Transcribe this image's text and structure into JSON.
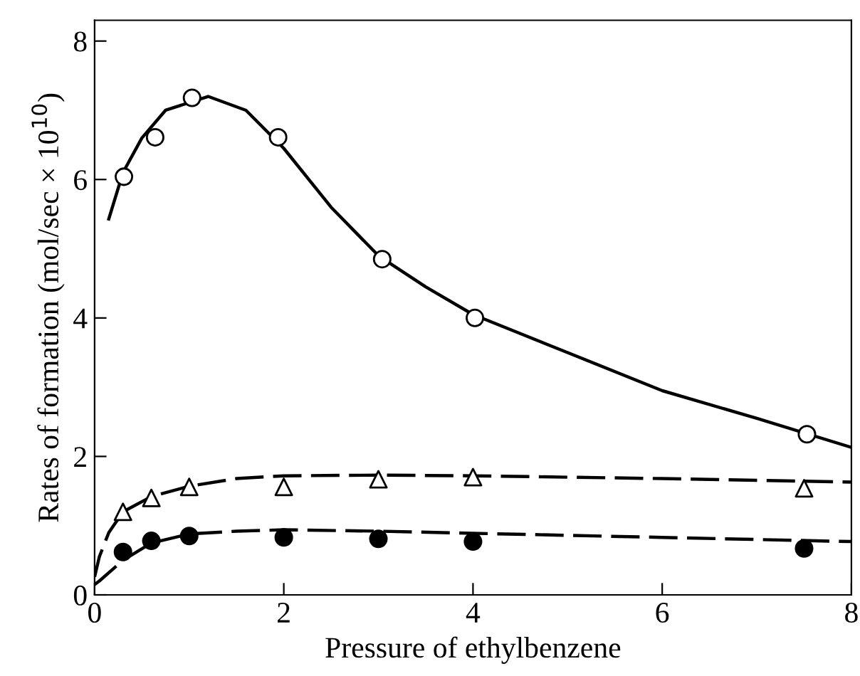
{
  "chart_data": {
    "type": "scatter",
    "xlabel": "Pressure of ethylbenzene",
    "ylabel": "Rates of formation (mol/sec × 10$^{10}$)",
    "xlim": [
      0,
      8
    ],
    "ylim": [
      0,
      8.3
    ],
    "xticks": [
      0,
      2,
      4,
      6,
      8
    ],
    "yticks": [
      0,
      2,
      4,
      6,
      8
    ],
    "grid": false,
    "legend": false,
    "series": [
      {
        "marker": "circle",
        "color": "#ffffff",
        "x": [
          0.31,
          0.64,
          1.03,
          1.94,
          3.04,
          4.02,
          7.53
        ],
        "values": [
          6.04,
          6.61,
          7.18,
          6.61,
          4.85,
          4.0,
          2.32
        ]
      },
      {
        "marker": "triangle",
        "color": "#ffffff",
        "x": [
          0.3,
          0.6,
          1.0,
          2.0,
          3.0,
          4.0,
          7.5
        ],
        "values": [
          1.2,
          1.4,
          1.56,
          1.56,
          1.67,
          1.7,
          1.54
        ]
      },
      {
        "marker": "circle",
        "color": "#000000",
        "x": [
          0.3,
          0.6,
          1.0,
          2.0,
          3.0,
          4.0,
          7.5
        ],
        "values": [
          0.62,
          0.78,
          0.85,
          0.83,
          0.81,
          0.77,
          0.67
        ]
      },
      {
        "type": "line",
        "line_style": "solid",
        "marker": "none",
        "color": "#000000",
        "x": [
          0.15,
          0.3,
          0.5,
          0.75,
          1.2,
          1.6,
          2.0,
          2.5,
          3.0,
          3.5,
          4.0,
          5.0,
          6.0,
          7.0,
          8.0
        ],
        "values": [
          5.43,
          6.1,
          6.6,
          7.0,
          7.2,
          7.0,
          6.45,
          5.6,
          4.9,
          4.45,
          4.05,
          3.5,
          2.95,
          2.55,
          2.13
        ]
      },
      {
        "type": "line",
        "line_style": "dashed",
        "marker": "none",
        "color": "#000000",
        "x": [
          0.0,
          0.05,
          0.15,
          0.3,
          0.6,
          1.0,
          1.5,
          2.0,
          3.0,
          4.0,
          6.0,
          8.0
        ],
        "values": [
          0.26,
          0.55,
          0.9,
          1.2,
          1.42,
          1.57,
          1.68,
          1.72,
          1.73,
          1.72,
          1.68,
          1.63
        ]
      },
      {
        "type": "line",
        "line_style": "dashed",
        "marker": "none",
        "color": "#000000",
        "x": [
          0.0,
          0.05,
          0.3,
          0.6,
          1.0,
          1.5,
          2.0,
          3.0,
          4.0,
          6.0,
          8.0
        ],
        "values": [
          0.15,
          0.2,
          0.5,
          0.75,
          0.88,
          0.92,
          0.94,
          0.92,
          0.89,
          0.83,
          0.77
        ]
      }
    ]
  }
}
